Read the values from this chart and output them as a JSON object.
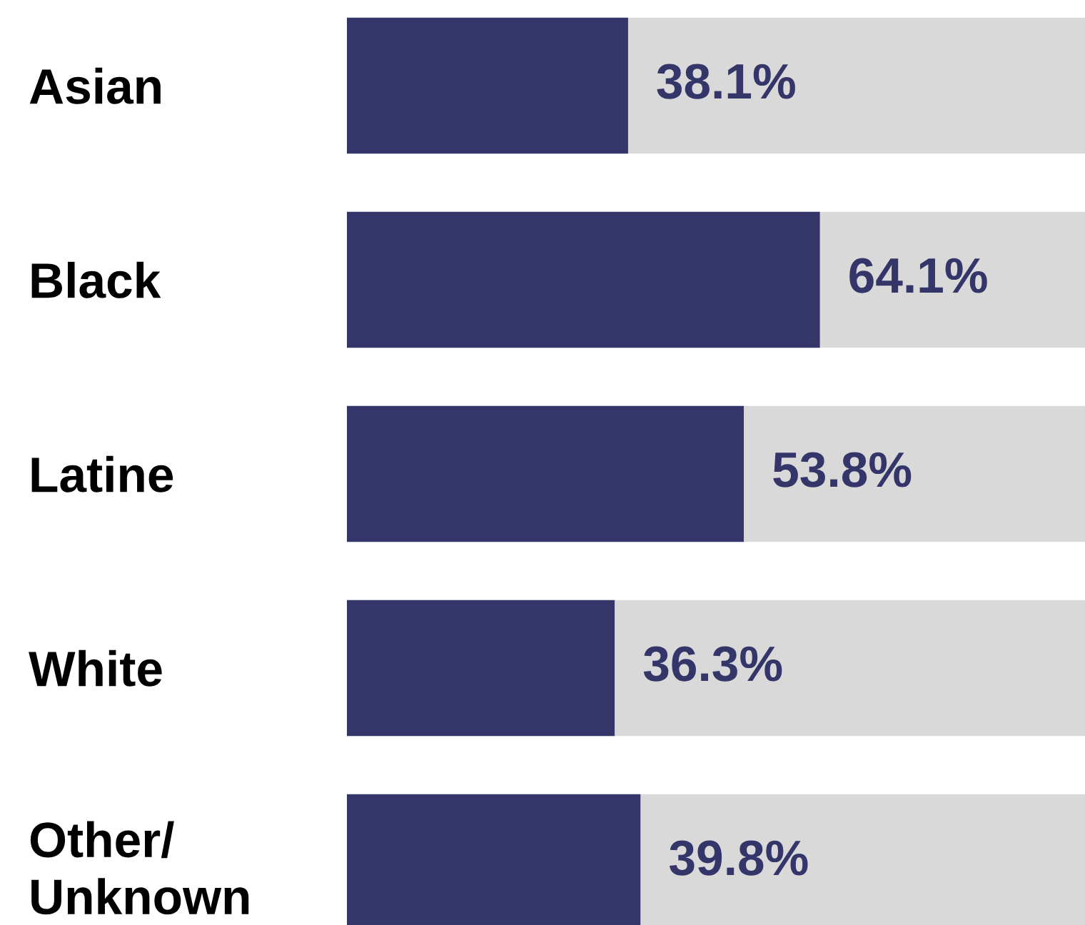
{
  "chart_data": {
    "type": "bar",
    "orientation": "horizontal",
    "stacked": true,
    "categories": [
      "Asian",
      "Black",
      "Latine",
      "White",
      "Other/\nUnknown"
    ],
    "series": [
      {
        "color": "#343669",
        "values": [
          38.1,
          64.1,
          53.8,
          36.3,
          39.8
        ],
        "value_labels": [
          "38.1%",
          "64.1%",
          "53.8%",
          "36.3%",
          "39.8%"
        ]
      },
      {
        "color": "#d9d9d9",
        "values": [
          61.9,
          35.9,
          46.2,
          63.7,
          60.2
        ]
      }
    ],
    "tick_labels": "y",
    "grid": false,
    "legend": false
  }
}
